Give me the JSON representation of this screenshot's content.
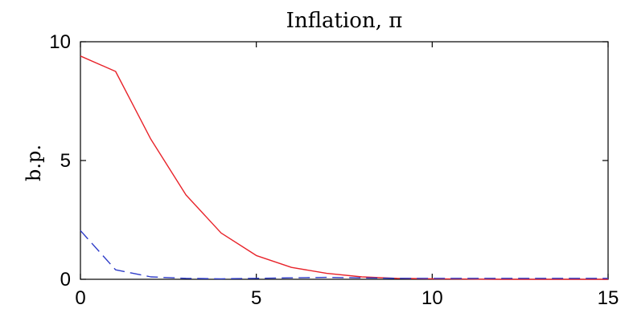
{
  "chart_data": {
    "type": "line",
    "title": "Inflation, π",
    "xlabel": "",
    "ylabel": "b.p.",
    "xlim": [
      0,
      15
    ],
    "ylim": [
      0,
      10
    ],
    "xticks": [
      0,
      5,
      10,
      15
    ],
    "yticks": [
      0,
      5,
      10
    ],
    "xtick_labels": [
      "0",
      "5",
      "10",
      "15"
    ],
    "ytick_labels": [
      "0",
      "5",
      "10"
    ],
    "grid": false,
    "legend": "none",
    "x": [
      0,
      1,
      2,
      3,
      4,
      5,
      6,
      7,
      8,
      9,
      10,
      11,
      12,
      13,
      14,
      15
    ],
    "series": [
      {
        "color": "#e8232a",
        "style": "solid",
        "values": [
          9.4,
          8.75,
          5.9,
          3.55,
          1.95,
          1.0,
          0.5,
          0.25,
          0.1,
          0.04,
          0.02,
          0.01,
          0.0,
          0.0,
          0.0,
          0.0
        ]
      },
      {
        "color": "#2e3cc8",
        "style": "dashed",
        "values": [
          2.05,
          0.4,
          0.1,
          0.04,
          0.02,
          0.04,
          0.06,
          0.08,
          0.06,
          0.04,
          0.04,
          0.04,
          0.04,
          0.04,
          0.04,
          0.04
        ]
      }
    ]
  }
}
